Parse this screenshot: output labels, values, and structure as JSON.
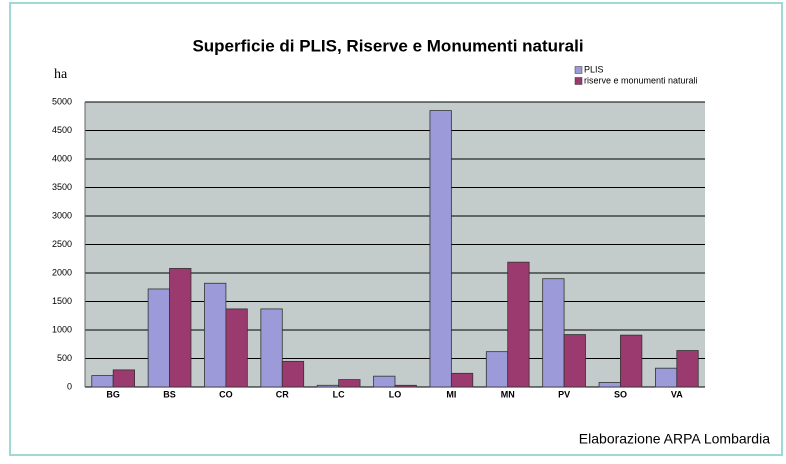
{
  "chart_data": {
    "type": "bar",
    "title": "Superficie di PLIS, Riserve e Monumenti naturali",
    "y_label": "ha",
    "source": "Elaborazione ARPA Lombardia",
    "categories": [
      "BG",
      "BS",
      "CO",
      "CR",
      "LC",
      "LO",
      "MI",
      "MN",
      "PV",
      "SO",
      "VA"
    ],
    "series": [
      {
        "name": "PLIS",
        "color": "#9c9ad8",
        "values": [
          200,
          1720,
          1820,
          1370,
          30,
          190,
          4850,
          620,
          1900,
          80,
          330
        ]
      },
      {
        "name": "riserve e monumenti naturali",
        "color": "#9b3a6e",
        "values": [
          300,
          2080,
          1370,
          450,
          130,
          30,
          240,
          2190,
          920,
          910,
          640
        ]
      }
    ],
    "ylim": [
      0,
      5000
    ],
    "yticks": [
      0,
      500,
      1000,
      1500,
      2000,
      2500,
      3000,
      3500,
      4000,
      4500,
      5000
    ],
    "grid": true,
    "legend": "top-right"
  }
}
